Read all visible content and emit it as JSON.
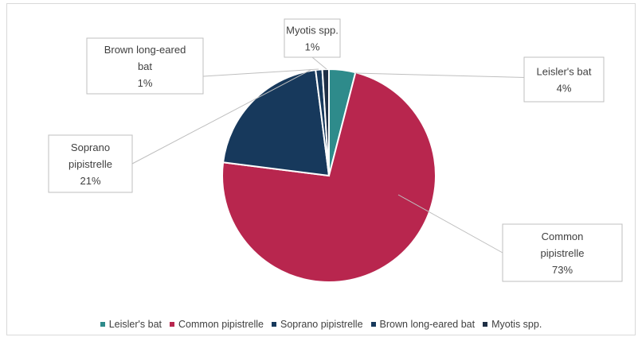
{
  "chart_data": {
    "type": "pie",
    "title": "",
    "categories": [
      "Leisler's bat",
      "Common pipistrelle",
      "Soprano pipistrelle",
      "Brown long-eared bat",
      "Myotis spp."
    ],
    "values": [
      4,
      73,
      21,
      1,
      1
    ],
    "percent_labels": [
      "4%",
      "73%",
      "21%",
      "1%",
      "1%"
    ],
    "label_lines": [
      [
        "Leisler's bat"
      ],
      [
        "Common",
        "pipistrelle"
      ],
      [
        "Soprano",
        "pipistrelle"
      ],
      [
        "Brown long-eared",
        "bat"
      ],
      [
        "Myotis spp."
      ]
    ],
    "colors": [
      "#2e8b8b",
      "#b8264e",
      "#17395c",
      "#17395c",
      "#1f2f45"
    ],
    "legend_placement": "bottom",
    "start_angle_deg": 0,
    "direction": "clockwise"
  }
}
